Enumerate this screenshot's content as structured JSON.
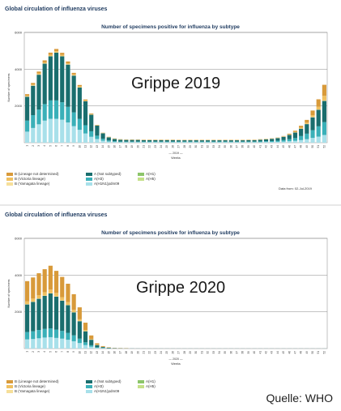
{
  "source_label": "Quelle: WHO",
  "colors": {
    "b_not_determined": "#d89a3a",
    "b_victoria": "#f0c060",
    "b_yamagata": "#f6df9a",
    "a_not_subtyped": "#1a6e6e",
    "a_h3": "#3ab0b8",
    "a_h1pdm09": "#a8e0ea",
    "a_h1": "#8cc56a",
    "a_h5": "#c4e088"
  },
  "chart_data": [
    {
      "type": "bar",
      "section_title": "Global circulation of influenza viruses",
      "title": "Number of specimens positive for influenza by subtype",
      "overlay_label": "Grippe 2019",
      "ylabel": "Number of specimens",
      "xlabel": "Weeks",
      "year_label": "2019",
      "note": "Data from: 02-Jul-2019",
      "ylim": [
        0,
        6000
      ],
      "yticks": [
        "6000",
        "4000",
        "2000"
      ],
      "ytick_values": [
        6000,
        4000,
        2000
      ],
      "grid": true,
      "legend_position": "bottom-left",
      "categories": [
        "1",
        "2",
        "3",
        "4",
        "5",
        "6",
        "7",
        "8",
        "9",
        "10",
        "11",
        "12",
        "13",
        "14",
        "15",
        "16",
        "17",
        "18",
        "19",
        "20",
        "21",
        "22",
        "23",
        "24",
        "25",
        "26",
        "27",
        "28",
        "29",
        "30",
        "31",
        "32",
        "33",
        "34",
        "35",
        "36",
        "37",
        "38",
        "39",
        "40",
        "41",
        "42",
        "43",
        "44",
        "45",
        "46",
        "47",
        "48",
        "49",
        "50",
        "51",
        "52"
      ],
      "series": [
        {
          "name": "B (Lineage not determined)",
          "key": "b_not_determined",
          "values": [
            80,
            90,
            100,
            110,
            120,
            120,
            110,
            100,
            90,
            80,
            60,
            40,
            20,
            10,
            10,
            10,
            10,
            10,
            10,
            10,
            10,
            10,
            10,
            10,
            10,
            10,
            10,
            10,
            10,
            10,
            10,
            10,
            10,
            10,
            10,
            10,
            10,
            10,
            10,
            10,
            10,
            10,
            10,
            10,
            20,
            40,
            60,
            100,
            150,
            250,
            400,
            600
          ]
        },
        {
          "name": "B (Victoria lineage)",
          "key": "b_victoria",
          "values": [
            40,
            40,
            50,
            50,
            60,
            60,
            60,
            50,
            40,
            40,
            30,
            20,
            10,
            10,
            10,
            10,
            10,
            10,
            10,
            10,
            10,
            10,
            10,
            10,
            10,
            10,
            10,
            10,
            10,
            10,
            10,
            10,
            10,
            10,
            10,
            10,
            10,
            10,
            10,
            10,
            10,
            10,
            10,
            10,
            10,
            20,
            30,
            50,
            70,
            100,
            150,
            250
          ]
        },
        {
          "name": "B (Yamagata lineage)",
          "key": "b_yamagata",
          "values": [
            20,
            20,
            20,
            20,
            20,
            20,
            20,
            20,
            20,
            20,
            10,
            10,
            10,
            10,
            10,
            10,
            10,
            10,
            10,
            10,
            10,
            10,
            10,
            10,
            10,
            10,
            10,
            10,
            10,
            10,
            10,
            10,
            10,
            10,
            10,
            10,
            10,
            10,
            10,
            10,
            10,
            10,
            10,
            10,
            10,
            10,
            10,
            10,
            10,
            20,
            20,
            30
          ]
        },
        {
          "name": "A (Not subtyped)",
          "key": "a_not_subtyped",
          "values": [
            1300,
            1600,
            1900,
            2200,
            2400,
            2600,
            2500,
            2300,
            2000,
            1700,
            1300,
            900,
            550,
            300,
            170,
            120,
            100,
            90,
            90,
            90,
            80,
            80,
            80,
            80,
            80,
            80,
            70,
            70,
            70,
            70,
            70,
            70,
            70,
            70,
            70,
            70,
            70,
            70,
            80,
            80,
            90,
            100,
            120,
            140,
            180,
            230,
            300,
            400,
            520,
            700,
            900,
            1150
          ]
        },
        {
          "name": "A(H3)",
          "key": "a_h3",
          "values": [
            600,
            700,
            800,
            900,
            1000,
            1000,
            950,
            850,
            750,
            600,
            450,
            300,
            180,
            100,
            60,
            40,
            30,
            30,
            30,
            30,
            30,
            30,
            30,
            30,
            30,
            30,
            30,
            30,
            30,
            30,
            30,
            30,
            30,
            30,
            30,
            30,
            30,
            30,
            30,
            30,
            40,
            40,
            50,
            60,
            80,
            110,
            150,
            220,
            300,
            420,
            560,
            700
          ]
        },
        {
          "name": "A(H1N1)pdm09",
          "key": "a_h1pdm09",
          "values": [
            600,
            800,
            1000,
            1200,
            1300,
            1300,
            1250,
            1100,
            900,
            700,
            500,
            320,
            200,
            110,
            60,
            40,
            30,
            30,
            30,
            30,
            30,
            30,
            30,
            30,
            30,
            30,
            30,
            30,
            30,
            30,
            30,
            30,
            30,
            30,
            30,
            30,
            30,
            30,
            30,
            30,
            30,
            40,
            40,
            50,
            60,
            80,
            100,
            140,
            190,
            260,
            330,
            420
          ]
        },
        {
          "name": "A(H1)",
          "key": "a_h1",
          "values": [
            0,
            0,
            0,
            0,
            0,
            0,
            0,
            0,
            0,
            0,
            0,
            0,
            0,
            0,
            0,
            0,
            0,
            0,
            0,
            0,
            0,
            0,
            0,
            0,
            0,
            0,
            0,
            0,
            0,
            0,
            0,
            0,
            0,
            0,
            0,
            0,
            0,
            0,
            0,
            0,
            0,
            0,
            0,
            0,
            0,
            0,
            0,
            0,
            0,
            0,
            0,
            0
          ]
        },
        {
          "name": "A(H5)",
          "key": "a_h5",
          "values": [
            0,
            0,
            0,
            0,
            0,
            0,
            0,
            0,
            0,
            0,
            0,
            0,
            0,
            0,
            0,
            0,
            0,
            0,
            0,
            0,
            0,
            0,
            0,
            0,
            0,
            0,
            0,
            0,
            0,
            0,
            0,
            0,
            0,
            0,
            0,
            0,
            0,
            0,
            0,
            0,
            0,
            0,
            0,
            0,
            0,
            0,
            0,
            0,
            0,
            0,
            0,
            0
          ]
        }
      ]
    },
    {
      "type": "bar",
      "section_title": "Global circulation of influenza viruses",
      "title": "Number of specimens positive for influenza by subtype",
      "overlay_label": "Grippe 2020",
      "ylabel": "Number of specimens",
      "xlabel": "Weeks",
      "year_label": "2020",
      "ylim": [
        0,
        6000
      ],
      "yticks": [
        "6000",
        "4000",
        "2000"
      ],
      "ytick_values": [
        6000,
        4000,
        2000
      ],
      "grid": true,
      "legend_position": "bottom-left",
      "categories": [
        "1",
        "2",
        "3",
        "4",
        "5",
        "6",
        "7",
        "8",
        "9",
        "10",
        "11",
        "12",
        "13",
        "14",
        "15",
        "16",
        "17",
        "18",
        "19",
        "20",
        "21",
        "22",
        "23",
        "24",
        "25",
        "26",
        "27",
        "28",
        "29",
        "30",
        "31",
        "32",
        "33",
        "34",
        "35",
        "36",
        "37",
        "38",
        "39",
        "40",
        "41",
        "42",
        "43",
        "44",
        "45",
        "46",
        "47",
        "48",
        "49",
        "50",
        "51",
        "52"
      ],
      "series": [
        {
          "name": "B (Lineage not determined)",
          "key": "b_not_determined",
          "values": [
            1100,
            1150,
            1200,
            1250,
            1300,
            1200,
            1100,
            1000,
            850,
            650,
            400,
            200,
            80,
            40,
            20,
            10,
            10,
            10,
            0,
            0,
            0,
            0,
            0,
            0,
            0,
            0,
            0,
            0,
            0,
            0,
            0,
            0,
            0,
            0,
            0,
            0,
            0,
            0,
            0,
            0,
            0,
            0,
            0,
            0,
            0,
            0,
            0,
            0,
            0,
            0,
            0,
            0
          ]
        },
        {
          "name": "B (Victoria lineage)",
          "key": "b_victoria",
          "values": [
            150,
            160,
            170,
            180,
            190,
            180,
            170,
            150,
            120,
            90,
            60,
            30,
            15,
            8,
            5,
            3,
            2,
            2,
            0,
            0,
            0,
            0,
            0,
            0,
            0,
            0,
            0,
            0,
            0,
            0,
            0,
            0,
            0,
            0,
            0,
            0,
            0,
            0,
            0,
            0,
            0,
            0,
            0,
            0,
            0,
            0,
            0,
            0,
            0,
            0,
            0,
            0
          ]
        },
        {
          "name": "B (Yamagata lineage)",
          "key": "b_yamagata",
          "values": [
            20,
            20,
            20,
            20,
            20,
            20,
            20,
            20,
            20,
            15,
            10,
            5,
            3,
            2,
            1,
            1,
            1,
            1,
            0,
            0,
            0,
            0,
            0,
            0,
            0,
            0,
            0,
            0,
            0,
            0,
            0,
            0,
            0,
            0,
            0,
            0,
            0,
            0,
            0,
            0,
            0,
            0,
            0,
            0,
            0,
            0,
            0,
            0,
            0,
            0,
            0,
            0
          ]
        },
        {
          "name": "A (Not subtyped)",
          "key": "a_not_subtyped",
          "values": [
            1500,
            1600,
            1700,
            1800,
            1900,
            1800,
            1650,
            1500,
            1250,
            950,
            600,
            300,
            120,
            50,
            25,
            15,
            10,
            8,
            5,
            4,
            3,
            3,
            3,
            3,
            3,
            3,
            3,
            3,
            3,
            3,
            3,
            3,
            3,
            3,
            3,
            3,
            3,
            3,
            3,
            3,
            3,
            3,
            3,
            3,
            3,
            3,
            3,
            3,
            3,
            3,
            3,
            3
          ]
        },
        {
          "name": "A(H3)",
          "key": "a_h3",
          "values": [
            400,
            420,
            450,
            470,
            480,
            450,
            420,
            380,
            320,
            240,
            150,
            80,
            30,
            15,
            8,
            5,
            3,
            2,
            2,
            1,
            1,
            1,
            1,
            1,
            1,
            1,
            1,
            1,
            1,
            1,
            1,
            1,
            1,
            1,
            1,
            1,
            1,
            1,
            1,
            1,
            1,
            1,
            1,
            1,
            1,
            1,
            1,
            1,
            1,
            1,
            1,
            1
          ]
        },
        {
          "name": "A(H1N1)pdm09",
          "key": "a_h1pdm09",
          "values": [
            500,
            520,
            560,
            600,
            620,
            580,
            540,
            480,
            400,
            300,
            190,
            100,
            40,
            20,
            10,
            5,
            3,
            2,
            2,
            1,
            1,
            1,
            1,
            1,
            1,
            1,
            1,
            1,
            1,
            1,
            1,
            1,
            1,
            1,
            1,
            1,
            1,
            1,
            1,
            1,
            1,
            1,
            1,
            1,
            1,
            1,
            1,
            1,
            1,
            1,
            1,
            1
          ]
        },
        {
          "name": "A(H1)",
          "key": "a_h1",
          "values": [
            0,
            0,
            0,
            0,
            0,
            0,
            0,
            0,
            0,
            0,
            0,
            0,
            0,
            0,
            0,
            0,
            0,
            0,
            0,
            0,
            0,
            0,
            0,
            0,
            0,
            0,
            0,
            0,
            0,
            0,
            0,
            0,
            0,
            0,
            0,
            0,
            0,
            0,
            0,
            0,
            0,
            0,
            0,
            0,
            0,
            0,
            0,
            0,
            0,
            0,
            0,
            0
          ]
        },
        {
          "name": "A(H5)",
          "key": "a_h5",
          "values": [
            0,
            0,
            0,
            0,
            0,
            0,
            0,
            0,
            0,
            0,
            0,
            0,
            0,
            0,
            0,
            0,
            0,
            0,
            0,
            0,
            0,
            0,
            0,
            0,
            0,
            0,
            0,
            0,
            0,
            0,
            0,
            0,
            0,
            0,
            0,
            0,
            0,
            0,
            0,
            0,
            0,
            0,
            0,
            0,
            0,
            0,
            0,
            0,
            0,
            0,
            0,
            0
          ]
        }
      ]
    }
  ]
}
